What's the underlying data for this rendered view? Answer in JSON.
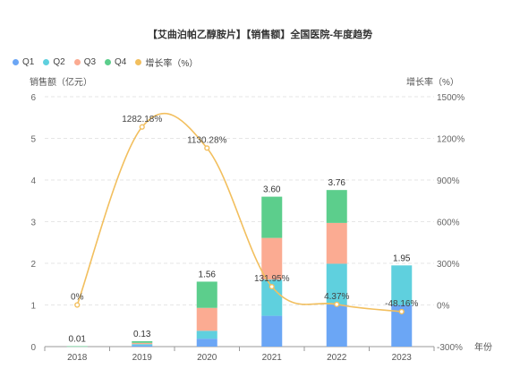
{
  "chart_data": {
    "type": "bar",
    "title": "【艾曲泊帕乙醇胺片】【销售额】全国医院-年度趋势",
    "xlabel": "年份",
    "ylabel": "销售额（亿元）",
    "y2label": "增长率（%）",
    "categories": [
      "2018",
      "2019",
      "2020",
      "2021",
      "2022",
      "2023"
    ],
    "ylim": [
      0,
      6
    ],
    "yticks": [
      "0",
      "1",
      "2",
      "3",
      "4",
      "5",
      "6"
    ],
    "y2lim": [
      -300,
      1500
    ],
    "y2ticks": [
      "-300%",
      "0%",
      "300%",
      "600%",
      "900%",
      "1200%",
      "1500%"
    ],
    "series": [
      {
        "name": "Q1",
        "type": "bar",
        "stack": "sales",
        "color": "#6ba6f5",
        "values": [
          0.0025,
          0.03,
          0.19,
          0.74,
          1.01,
          1.0
        ]
      },
      {
        "name": "Q2",
        "type": "bar",
        "stack": "sales",
        "color": "#5fd0de",
        "values": [
          0.0025,
          0.03,
          0.19,
          0.87,
          0.98,
          0.95
        ]
      },
      {
        "name": "Q3",
        "type": "bar",
        "stack": "sales",
        "color": "#fbab92",
        "values": [
          0.0025,
          0.03,
          0.55,
          1.0,
          0.98,
          0
        ]
      },
      {
        "name": "Q4",
        "type": "bar",
        "stack": "sales",
        "color": "#5cce8c",
        "values": [
          0.0025,
          0.04,
          0.63,
          0.99,
          0.79,
          0
        ]
      },
      {
        "name": "增长率（%）",
        "type": "line",
        "axis": "right",
        "color": "#f2bf5e",
        "values": [
          0,
          1282.18,
          1130.28,
          131.95,
          4.37,
          -48.16
        ]
      }
    ],
    "total_labels": [
      "0.01",
      "0.13",
      "1.56",
      "3.60",
      "3.76",
      "1.95"
    ],
    "growth_labels": [
      "0%",
      "1282.18%",
      "1130.28%",
      "131.95%",
      "4.37%",
      "-48.16%"
    ],
    "grid": true,
    "legend_position": "top-left"
  }
}
